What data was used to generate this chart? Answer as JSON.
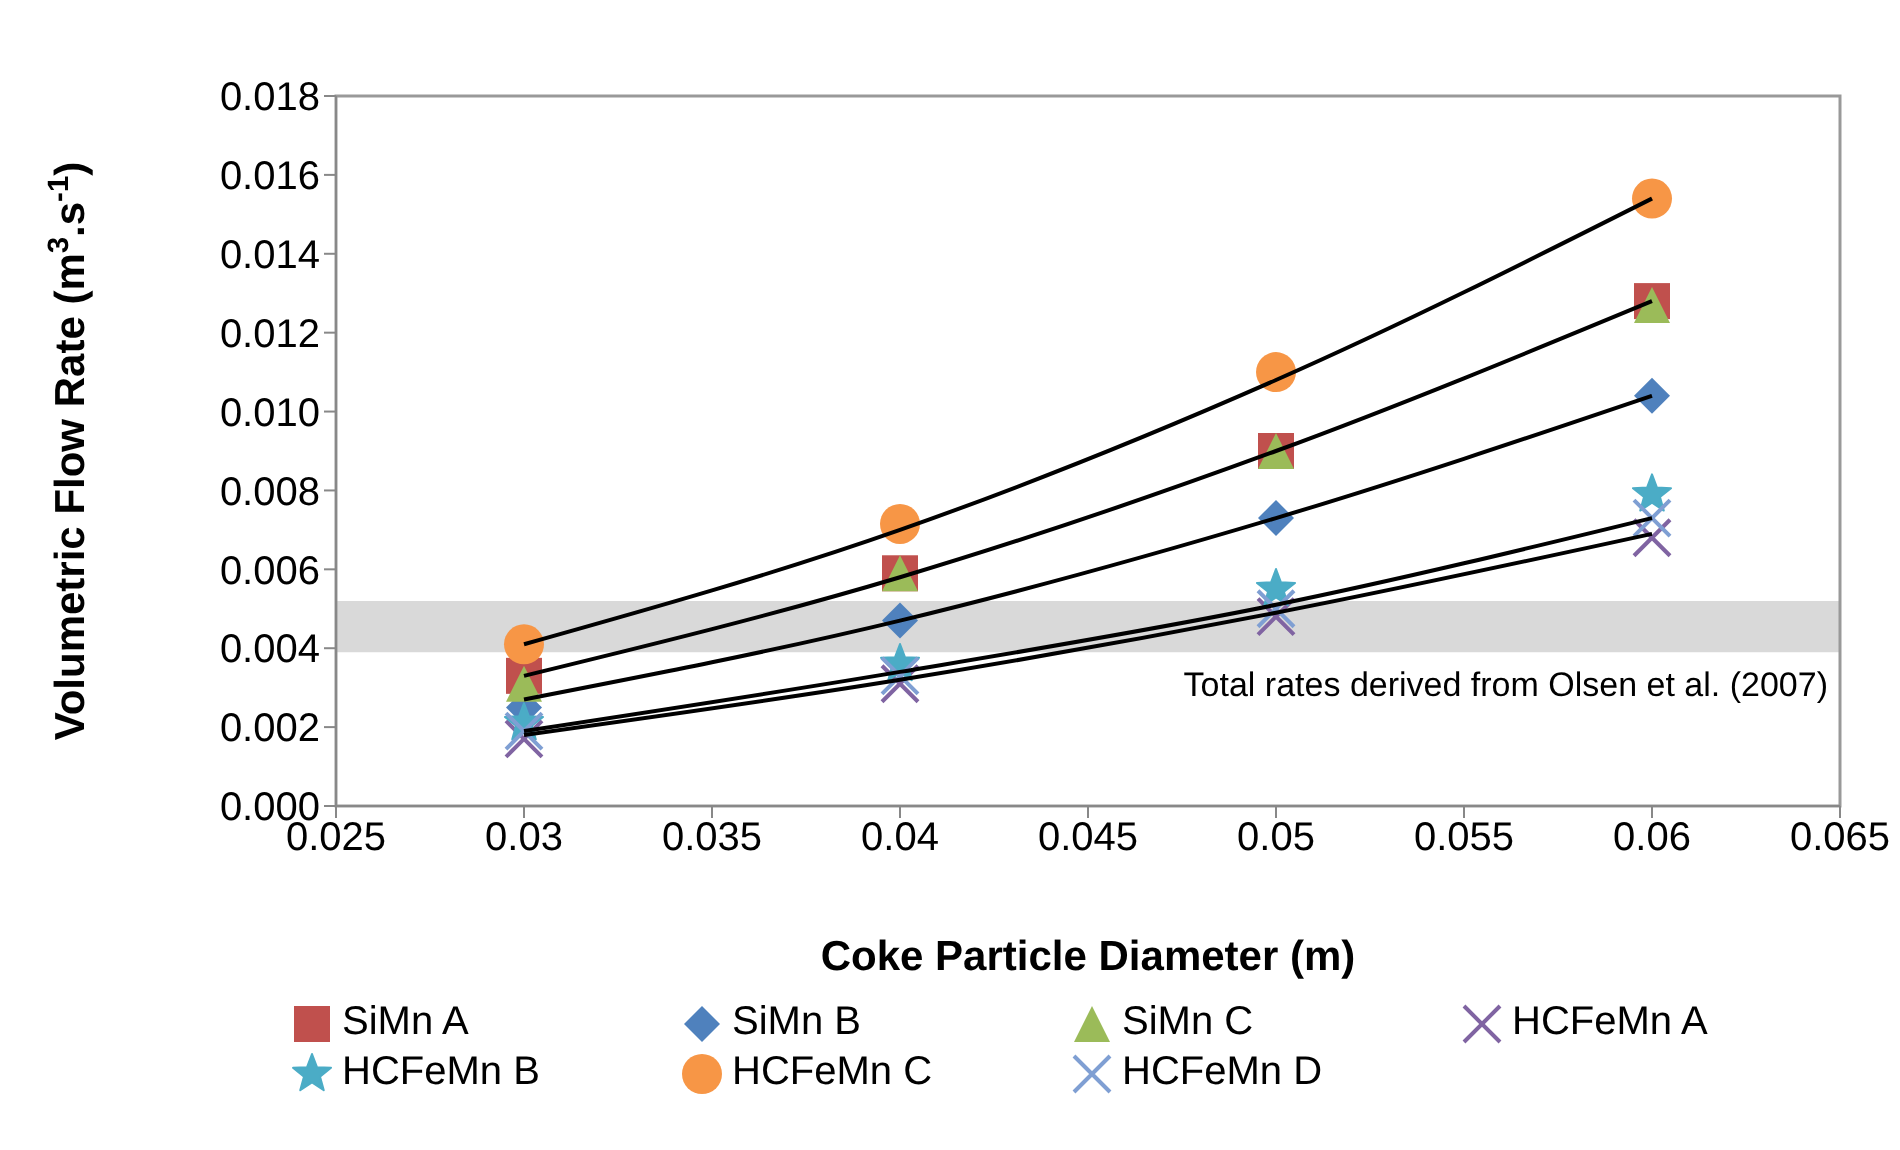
{
  "chart_data": {
    "type": "scatter",
    "xlabel": "Coke Particle Diameter (m)",
    "ylabel": "Volumetric Flow Rate (m$^{3}$.s$^{-1}$)",
    "x": [
      0.03,
      0.04,
      0.05,
      0.06
    ],
    "series": [
      {
        "name": "SiMn A",
        "color": "#c0504d",
        "marker": "square",
        "values": [
          0.0033,
          0.0059,
          0.009,
          0.0128
        ]
      },
      {
        "name": "SiMn B",
        "color": "#4f81bd",
        "marker": "diamond",
        "values": [
          0.0025,
          0.0047,
          0.0073,
          0.0104
        ]
      },
      {
        "name": "SiMn C",
        "color": "#9bbb59",
        "marker": "triangle",
        "values": [
          0.0031,
          0.0059,
          0.009,
          0.0127
        ]
      },
      {
        "name": "HCFeMn A",
        "color": "#8064a2",
        "marker": "cross",
        "values": [
          0.0017,
          0.0031,
          0.0048,
          0.0068
        ]
      },
      {
        "name": "HCFeMn B",
        "color": "#4bacc6",
        "marker": "star",
        "values": [
          0.0021,
          0.0036,
          0.0055,
          0.0079
        ]
      },
      {
        "name": "HCFeMn C",
        "color": "#f79646",
        "marker": "circle",
        "values": [
          0.0041,
          0.00715,
          0.011,
          0.0154
        ]
      },
      {
        "name": "HCFeMn D",
        "color": "#7f9fd3",
        "marker": "cross",
        "values": [
          0.0019,
          0.0033,
          0.005,
          0.0073
        ]
      },
      {
        "type": "line",
        "color": "#000000",
        "marker": "none",
        "values": [
          0.0041,
          0.007,
          0.0108,
          0.0154
        ]
      },
      {
        "type": "line",
        "color": "#000000",
        "marker": "none",
        "values": [
          0.0033,
          0.0058,
          0.009,
          0.0128
        ]
      },
      {
        "type": "line",
        "color": "#000000",
        "marker": "none",
        "values": [
          0.0027,
          0.0047,
          0.0073,
          0.0104
        ]
      },
      {
        "type": "line",
        "color": "#000000",
        "marker": "none",
        "values": [
          0.0019,
          0.0034,
          0.0051,
          0.0073
        ]
      },
      {
        "type": "line",
        "color": "#000000",
        "marker": "none",
        "values": [
          0.0018,
          0.0032,
          0.0049,
          0.0069
        ]
      }
    ],
    "xlim": [
      0.025,
      0.065
    ],
    "xticks": [
      0.025,
      0.03,
      0.035,
      0.04,
      0.045,
      0.05,
      0.055,
      0.06,
      0.065
    ],
    "ylim": [
      0,
      0.018
    ],
    "yticks": [
      {
        "value": 0,
        "label": "0.000"
      },
      {
        "value": 0.002,
        "label": "0.002"
      },
      {
        "value": 0.004,
        "label": "0.004"
      },
      {
        "value": 0.006,
        "label": "0.006"
      },
      {
        "value": 0.008,
        "label": "0.008"
      },
      {
        "value": 0.01,
        "label": "0.010"
      },
      {
        "value": 0.012,
        "label": "0.012"
      },
      {
        "value": 0.014,
        "label": "0.014"
      },
      {
        "value": 0.016,
        "label": "0.016"
      },
      {
        "value": 0.018,
        "label": "0.018"
      }
    ],
    "bands": [
      {
        "axis": "y",
        "from": 0.0039,
        "to": 0.0052,
        "label": "Total rates derived from Olsen et al. (2007)",
        "color": "#d9d9d9"
      }
    ],
    "grid": false,
    "legend": "bottom"
  }
}
